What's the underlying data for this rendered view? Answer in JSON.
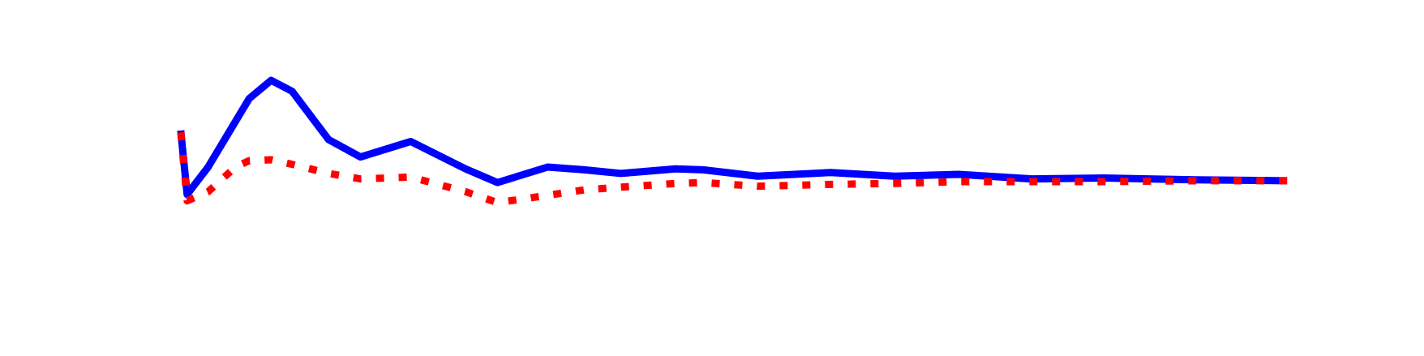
{
  "chart_data": {
    "type": "line",
    "x": [
      0,
      7,
      30,
      60,
      75,
      99,
      122,
      162,
      197,
      252,
      312,
      347,
      402,
      442,
      482,
      542,
      572,
      632,
      712,
      782,
      852,
      932,
      1012,
      1112,
      1212
    ],
    "series": [
      {
        "color": "#0000ff",
        "style": "solid",
        "values": [
          5.5,
          -1.5,
          1.5,
          6.5,
          9,
          11,
          9.8,
          4.5,
          2.6,
          4.3,
          1.3,
          -0.2,
          1.5,
          1.2,
          0.8,
          1.3,
          1.2,
          0.5,
          0.9,
          0.5,
          0.7,
          0.2,
          0.3,
          0.1,
          0
        ]
      },
      {
        "color": "#ff0000",
        "style": "dotted",
        "values": [
          5.3,
          -2.2,
          -1.2,
          1.5,
          2.2,
          2.3,
          1.8,
          0.8,
          0.2,
          0.4,
          -1.2,
          -2.4,
          -1.6,
          -1,
          -0.7,
          -0.3,
          -0.2,
          -0.6,
          -0.4,
          -0.3,
          -0.1,
          -0.1,
          -0.1,
          0,
          0
        ]
      }
    ],
    "xlim": [
      -198,
      1362
    ],
    "ylim": [
      -19.2,
      19.8
    ]
  }
}
